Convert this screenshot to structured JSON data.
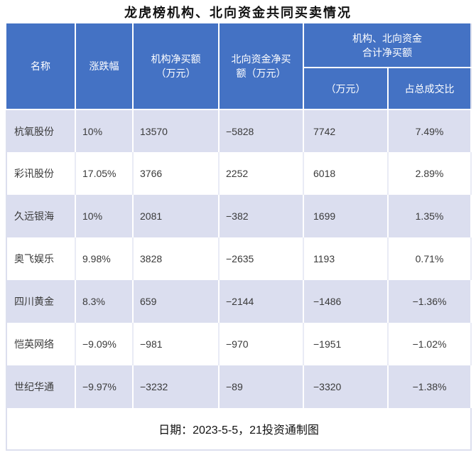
{
  "title": "龙虎榜机构、北向资金共同买卖情况",
  "colors": {
    "header_bg": "#4472c4",
    "header_text": "#ffffff",
    "row_alt_bg": "#dbdeef",
    "row_bg": "#ffffff",
    "body_text": "#3a3a3a",
    "outer_border": "#dcdfee"
  },
  "table": {
    "headers": {
      "name": "名称",
      "change": "涨跌幅",
      "inst_net_buy": "机构净买额\n（万元）",
      "north_net_buy": "北向资金净买\n额（万元）",
      "combined_group": "机构、北向资金\n合计净买额",
      "combined_amount": "（万元）",
      "combined_pct": "占总成交比"
    },
    "rows": [
      {
        "name": "杭氧股份",
        "change": "10%",
        "inst": "13570",
        "north": "−5828",
        "total": "7742",
        "pct": "7.49%"
      },
      {
        "name": "彩讯股份",
        "change": "17.05%",
        "inst": "3766",
        "north": "2252",
        "total": "6018",
        "pct": "2.89%"
      },
      {
        "name": "久远银海",
        "change": "10%",
        "inst": "2081",
        "north": "−382",
        "total": "1699",
        "pct": "1.35%"
      },
      {
        "name": "奥飞娱乐",
        "change": "9.98%",
        "inst": "3828",
        "north": "−2635",
        "total": "1193",
        "pct": "0.71%"
      },
      {
        "name": "四川黄金",
        "change": "8.3%",
        "inst": "659",
        "north": "−2144",
        "total": "−1486",
        "pct": "−1.36%"
      },
      {
        "name": "恺英网络",
        "change": "−9.09%",
        "inst": "−981",
        "north": "−970",
        "total": "−1951",
        "pct": "−1.02%"
      },
      {
        "name": "世纪华通",
        "change": "−9.97%",
        "inst": "−3232",
        "north": "−89",
        "total": "−3320",
        "pct": "−1.38%"
      }
    ],
    "footer": "日期：2023-5-5，21投资通制图"
  },
  "chart_data": {
    "type": "table",
    "title": "龙虎榜机构、北向资金共同买卖情况",
    "columns": [
      "名称",
      "涨跌幅",
      "机构净买额（万元）",
      "北向资金净买额（万元）",
      "机构、北向资金合计净买额（万元）",
      "机构、北向资金合计净买额占总成交比"
    ],
    "rows": [
      [
        "杭氧股份",
        "10%",
        13570,
        -5828,
        7742,
        "7.49%"
      ],
      [
        "彩讯股份",
        "17.05%",
        3766,
        2252,
        6018,
        "2.89%"
      ],
      [
        "久远银海",
        "10%",
        2081,
        -382,
        1699,
        "1.35%"
      ],
      [
        "奥飞娱乐",
        "9.98%",
        3828,
        -2635,
        1193,
        "0.71%"
      ],
      [
        "四川黄金",
        "8.3%",
        659,
        -2144,
        -1486,
        "-1.36%"
      ],
      [
        "恺英网络",
        "-9.09%",
        -981,
        -970,
        -1951,
        "-1.02%"
      ],
      [
        "世纪华通",
        "-9.97%",
        -3232,
        -89,
        -3320,
        "-1.38%"
      ]
    ],
    "note": "日期：2023-5-5，21投资通制图",
    "layout": {
      "header_merged_cell": "机构、北向资金合计净买额 spans last two columns",
      "row_striping": "odd rows lavender, even rows white"
    }
  }
}
